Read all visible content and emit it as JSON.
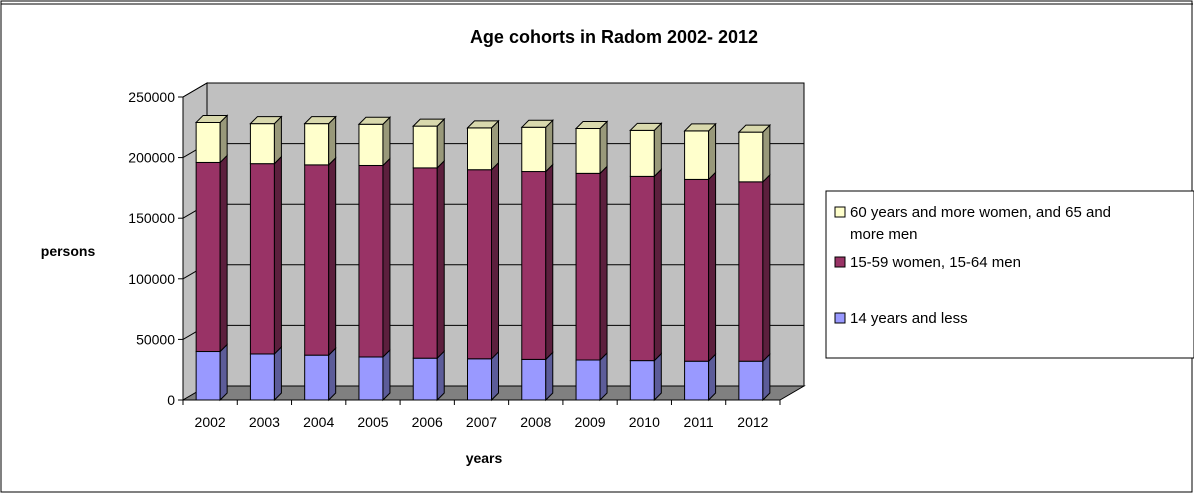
{
  "chart_data": {
    "type": "bar",
    "stacked": true,
    "title": "Age cohorts in Radom 2002- 2012",
    "xlabel": "years",
    "ylabel": "persons",
    "categories": [
      "2002",
      "2003",
      "2004",
      "2005",
      "2006",
      "2007",
      "2008",
      "2009",
      "2010",
      "2011",
      "2012"
    ],
    "ylim": [
      0,
      250000
    ],
    "yticks": [
      0,
      50000,
      100000,
      150000,
      200000,
      250000
    ],
    "ytick_labels": [
      "0",
      "50000",
      "100000",
      "150000",
      "200000",
      "250000"
    ],
    "grid": true,
    "legend_position": "right",
    "series": [
      {
        "name": "14 years and less",
        "color": "#9999FF",
        "values": [
          40000,
          38000,
          37000,
          35500,
          34500,
          34000,
          33500,
          33000,
          32500,
          32000,
          32000
        ]
      },
      {
        "name": "15-59 women, 15-64 men",
        "color": "#993366",
        "values": [
          156000,
          157000,
          157000,
          158000,
          157000,
          156000,
          155000,
          154000,
          152000,
          150000,
          148000
        ]
      },
      {
        "name": "60 years and more women, and 65 and more men",
        "color": "#FFFFCC",
        "values": [
          33000,
          33000,
          34000,
          34000,
          34500,
          34500,
          36500,
          37000,
          38000,
          40000,
          41000
        ]
      }
    ],
    "legend_order": [
      2,
      1,
      0
    ],
    "legend_lines": [
      [
        "60 years and more women, and 65 and",
        "more men"
      ],
      [
        "15-59 women, 15-64 men"
      ],
      [
        "14 years and less"
      ]
    ],
    "wall_color": "#C0C0C0",
    "floor_color": "#808080"
  }
}
